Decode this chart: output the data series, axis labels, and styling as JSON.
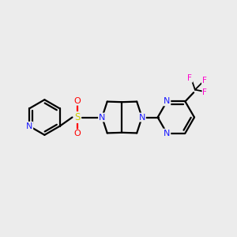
{
  "background_color": "#ececec",
  "bond_color": "#000000",
  "n_color": "#1a1aff",
  "s_color": "#cccc00",
  "o_color": "#ff0000",
  "f_color": "#ff00cc",
  "lw": 1.6,
  "fontsize": 8.0,
  "xlim": [
    0,
    10
  ],
  "ylim": [
    0,
    10
  ],
  "figsize": [
    3.0,
    3.0
  ],
  "dpi": 100
}
